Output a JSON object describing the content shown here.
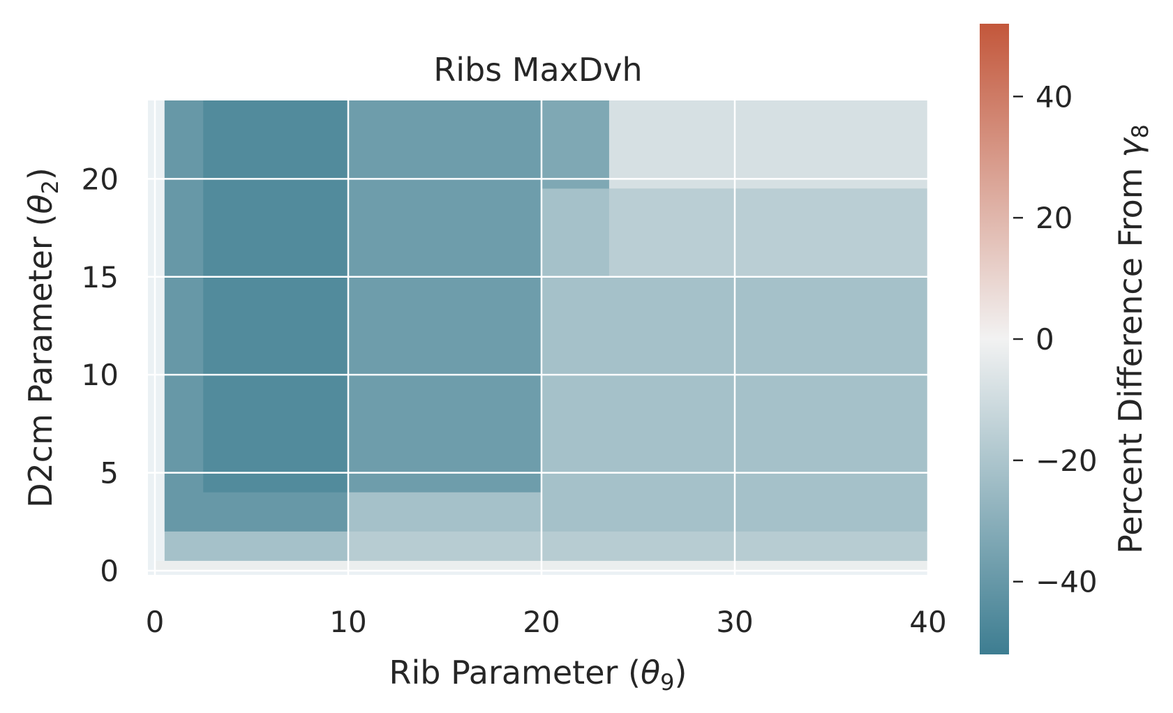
{
  "chart_data": {
    "type": "heatmap",
    "title": "Ribs MaxDvh",
    "xlabel": {
      "text": "Rib Parameter (",
      "symbol": "θ",
      "sub": "9",
      "close": ")"
    },
    "ylabel": {
      "text": "D2cm Parameter (",
      "symbol": "θ",
      "sub": "2",
      "close": ")"
    },
    "colorbar_label": {
      "text": "Percent Difference From ",
      "symbol": "γ",
      "sub": "8"
    },
    "x_ticks": [
      "0",
      "10",
      "20",
      "30",
      "40"
    ],
    "y_ticks": [
      "0",
      "5",
      "10",
      "15",
      "20"
    ],
    "cbar_ticks": [
      "40",
      "20",
      "0",
      "−20",
      "−40"
    ],
    "xlim": [
      0,
      40
    ],
    "ylim": [
      0,
      24
    ],
    "clim": [
      -52,
      52
    ],
    "grid": true,
    "colormap": {
      "low": "#3d7d91",
      "mid": "#f2f2f2",
      "high": "#c3573b"
    },
    "approx_regions": [
      {
        "x": [
          0.5,
          40
        ],
        "y": [
          0.5,
          24
        ],
        "value": -22
      },
      {
        "x": [
          0.5,
          10
        ],
        "y": [
          2,
          24
        ],
        "value": -40
      },
      {
        "x": [
          2.5,
          10
        ],
        "y": [
          4,
          24
        ],
        "value": -46
      },
      {
        "x": [
          10,
          20
        ],
        "y": [
          4,
          24
        ],
        "value": -38
      },
      {
        "x": [
          20,
          23.5
        ],
        "y": [
          19.5,
          24
        ],
        "value": -33
      },
      {
        "x": [
          23.5,
          40
        ],
        "y": [
          19.5,
          24
        ],
        "value": -8
      },
      {
        "x": [
          23.5,
          40
        ],
        "y": [
          15,
          19.5
        ],
        "value": -16
      },
      {
        "x": [
          10,
          40
        ],
        "y": [
          0.5,
          2
        ],
        "value": -17
      },
      {
        "x": [
          0,
          40
        ],
        "y": [
          0,
          0.5
        ],
        "value": -2
      }
    ]
  }
}
